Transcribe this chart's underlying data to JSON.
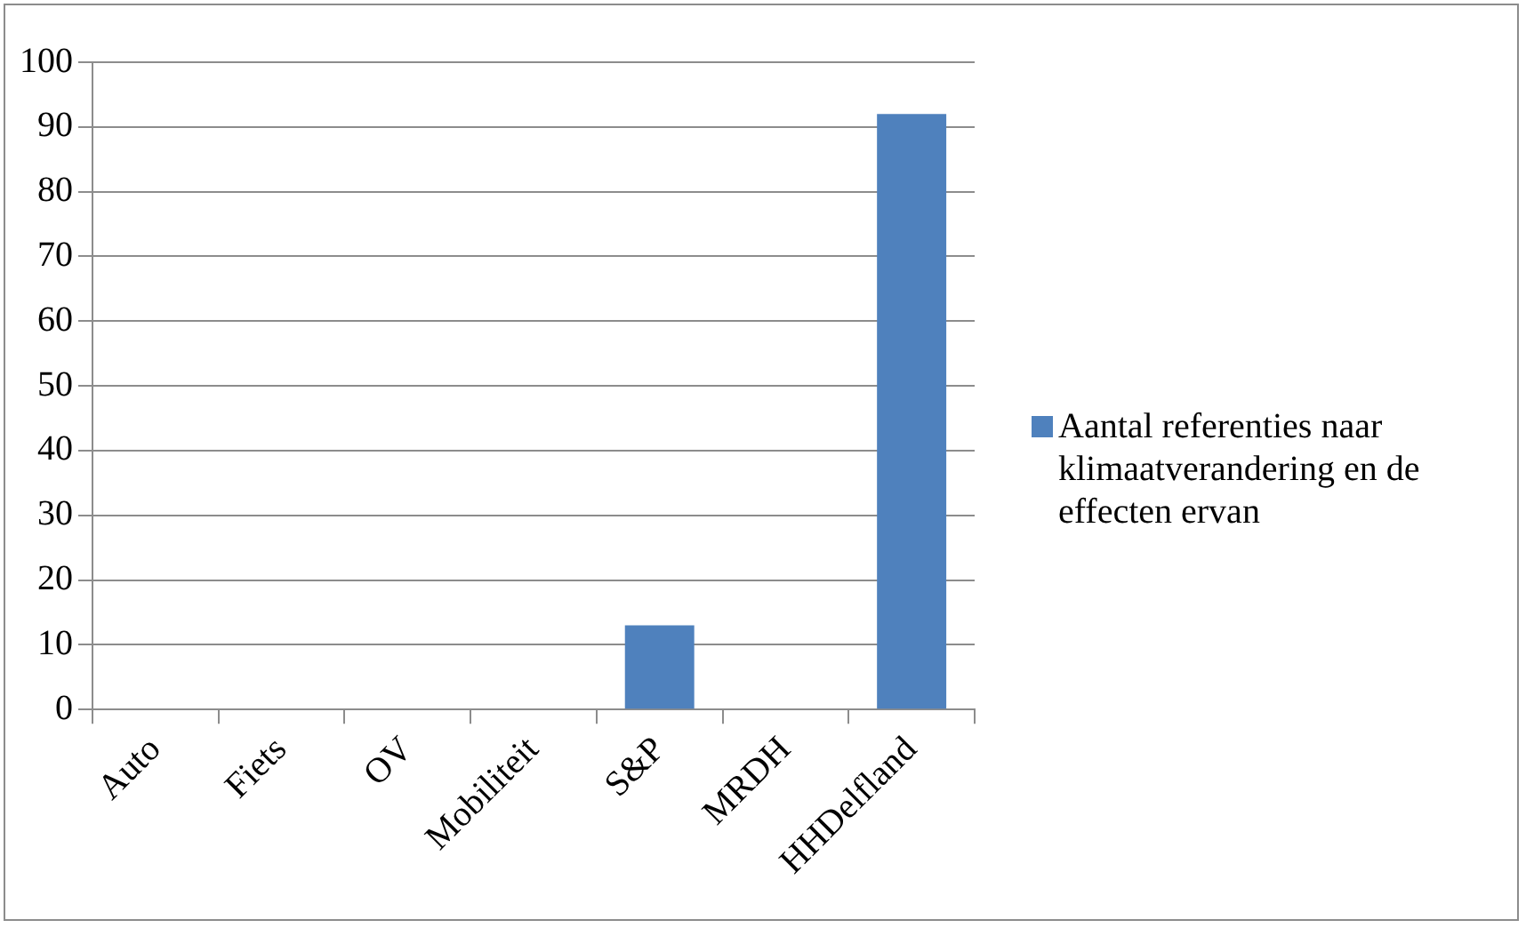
{
  "chart_data": {
    "type": "bar",
    "categories": [
      "Auto",
      "Fiets",
      "OV",
      "Mobiliteit",
      "S&P",
      "MRDH",
      "HHDelfland"
    ],
    "series": [
      {
        "name": "Aantal referenties naar klimaatverandering en de effecten ervan",
        "color": "#4f81bd",
        "values": [
          0,
          0,
          0,
          0,
          13,
          0,
          92
        ]
      }
    ],
    "ylim": [
      0,
      100
    ],
    "yticks": [
      0,
      10,
      20,
      30,
      40,
      50,
      60,
      70,
      80,
      90,
      100
    ],
    "grid": "y",
    "legend": "right"
  }
}
